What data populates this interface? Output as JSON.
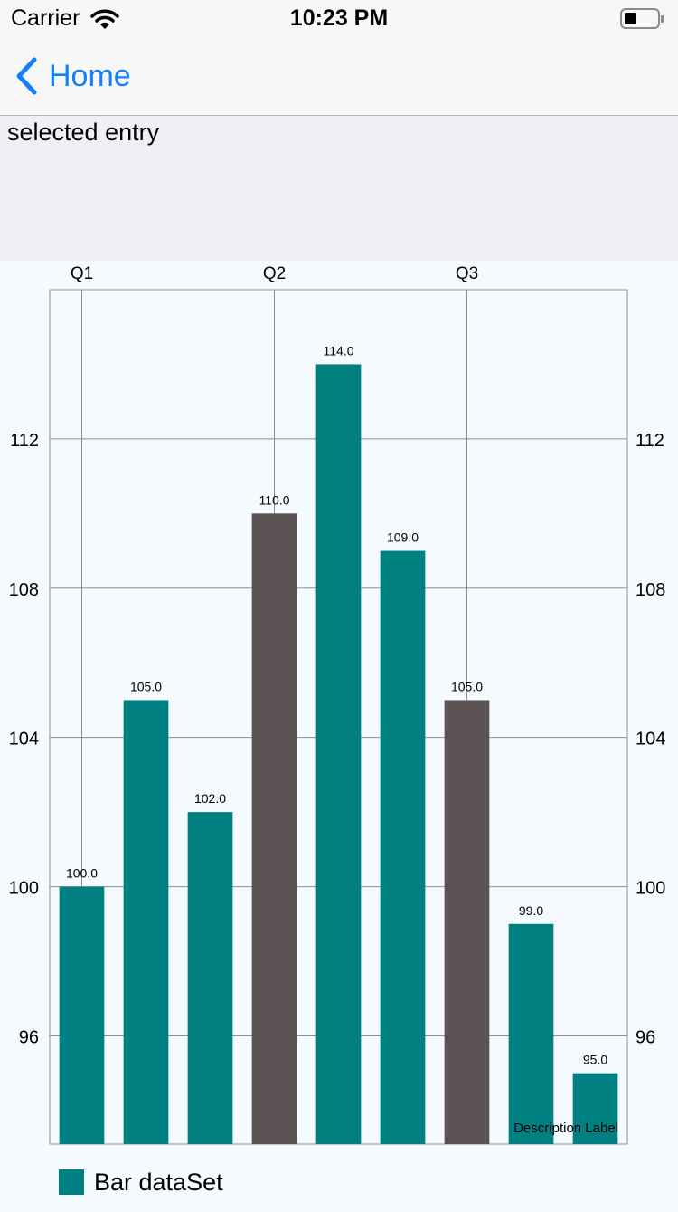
{
  "status": {
    "carrier": "Carrier",
    "time": "10:23 PM",
    "icons": [
      "wifi-icon",
      "battery-icon"
    ]
  },
  "nav": {
    "back_label": "Home",
    "back_icon": "chevron-left-icon"
  },
  "selection": {
    "label": "selected entry"
  },
  "chart_data": {
    "type": "bar",
    "categories": [
      "Q1",
      "",
      "",
      "Q2",
      "",
      "",
      "Q3",
      "",
      ""
    ],
    "x_tick_labels": [
      "Q1",
      "Q2",
      "Q3"
    ],
    "values": [
      100.0,
      105.0,
      102.0,
      110.0,
      114.0,
      109.0,
      105.0,
      99.0,
      95.0
    ],
    "value_labels": [
      "100.0",
      "105.0",
      "102.0",
      "110.0",
      "114.0",
      "109.0",
      "105.0",
      "99.0",
      "95.0"
    ],
    "highlighted_indices": [
      3,
      6
    ],
    "series": [
      {
        "name": "Bar dataSet",
        "values": [
          100.0,
          105.0,
          102.0,
          110.0,
          114.0,
          109.0,
          105.0,
          99.0,
          95.0
        ]
      }
    ],
    "ylim": [
      93.1,
      116.0
    ],
    "y_ticks": [
      96,
      100,
      104,
      108,
      112
    ],
    "y_axes": [
      "left",
      "right"
    ],
    "x_axis_position": "top",
    "grid": true,
    "colors": {
      "bar": "#008080",
      "highlight": "#5a5253",
      "grid": "#8e8e8e",
      "text": "#000000"
    },
    "description": "Description Label",
    "legend": {
      "label": "Bar dataSet",
      "position": "bottom-left"
    }
  }
}
